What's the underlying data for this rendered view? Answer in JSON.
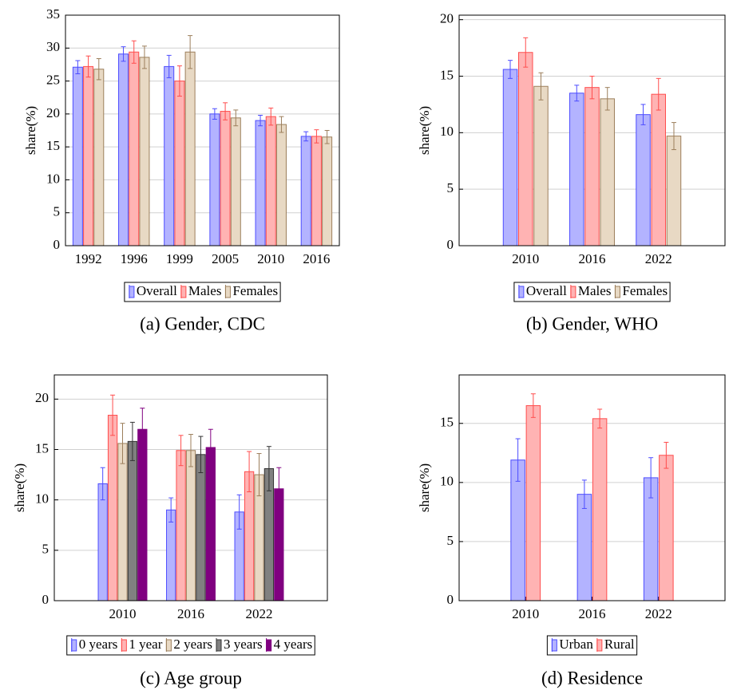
{
  "chart_data": [
    {
      "type": "bar",
      "caption": "(a) Gender, CDC",
      "ylabel": "share(%)",
      "categories": [
        "1992",
        "1996",
        "1999",
        "2005",
        "2010",
        "2016"
      ],
      "ylim": [
        0,
        35
      ],
      "yticks": [
        0,
        5,
        10,
        15,
        20,
        25,
        30,
        35
      ],
      "grid": true,
      "series": [
        {
          "name": "Overall",
          "color": "#b3b3ff",
          "edgecolor": "#4d4dff",
          "values": [
            27.1,
            29.1,
            27.2,
            20.0,
            19.0,
            16.6
          ],
          "errors": [
            1.0,
            1.1,
            1.7,
            0.8,
            0.8,
            0.7
          ]
        },
        {
          "name": "Males",
          "color": "#ffb3b3",
          "edgecolor": "#ff4d4d",
          "values": [
            27.2,
            29.4,
            25.0,
            20.4,
            19.6,
            16.6
          ],
          "errors": [
            1.6,
            1.7,
            2.3,
            1.3,
            1.3,
            1.0
          ]
        },
        {
          "name": "Females",
          "color": "#e8d9c4",
          "edgecolor": "#9c7f5c",
          "values": [
            26.8,
            28.6,
            29.4,
            19.4,
            18.4,
            16.5
          ],
          "errors": [
            1.6,
            1.7,
            2.5,
            1.2,
            1.2,
            1.0
          ]
        }
      ]
    },
    {
      "type": "bar",
      "caption": "(b) Gender, WHO",
      "ylabel": "share(%)",
      "categories": [
        "2010",
        "2016",
        "2022"
      ],
      "ylim": [
        0,
        20.4
      ],
      "yticks": [
        0,
        5,
        10,
        15,
        20
      ],
      "grid": true,
      "series": [
        {
          "name": "Overall",
          "color": "#b3b3ff",
          "edgecolor": "#4d4dff",
          "values": [
            15.6,
            13.5,
            11.6
          ],
          "errors": [
            0.8,
            0.7,
            0.9
          ]
        },
        {
          "name": "Males",
          "color": "#ffb3b3",
          "edgecolor": "#ff4d4d",
          "values": [
            17.1,
            14.0,
            13.4
          ],
          "errors": [
            1.3,
            1.0,
            1.4
          ]
        },
        {
          "name": "Females",
          "color": "#e8d9c4",
          "edgecolor": "#9c7f5c",
          "values": [
            14.1,
            13.0,
            9.7
          ],
          "errors": [
            1.2,
            1.0,
            1.2
          ]
        }
      ]
    },
    {
      "type": "bar",
      "caption": "(c) Age group",
      "ylabel": "share(%)",
      "categories": [
        "2010",
        "2016",
        "2022"
      ],
      "ylim": [
        0,
        22.4
      ],
      "yticks": [
        0,
        5,
        10,
        15,
        20
      ],
      "grid": true,
      "series": [
        {
          "name": "0 years",
          "color": "#b3b3ff",
          "edgecolor": "#4d4dff",
          "values": [
            11.6,
            9.0,
            8.8
          ],
          "errors": [
            1.6,
            1.2,
            1.7
          ]
        },
        {
          "name": "1 year",
          "color": "#ffb3b3",
          "edgecolor": "#ff4d4d",
          "values": [
            18.4,
            14.9,
            12.8
          ],
          "errors": [
            2.0,
            1.5,
            2.0
          ]
        },
        {
          "name": "2 years",
          "color": "#e8d9c4",
          "edgecolor": "#9c7f5c",
          "values": [
            15.6,
            14.9,
            12.5
          ],
          "errors": [
            2.0,
            1.6,
            2.1
          ]
        },
        {
          "name": "3 years",
          "color": "#808080",
          "edgecolor": "#333333",
          "values": [
            15.8,
            14.5,
            13.1
          ],
          "errors": [
            1.9,
            1.8,
            2.2
          ]
        },
        {
          "name": "4 years",
          "color": "#800080",
          "edgecolor": "#800080",
          "values": [
            17.0,
            15.2,
            11.1
          ],
          "errors": [
            2.1,
            1.8,
            2.1
          ]
        }
      ]
    },
    {
      "type": "bar",
      "caption": "(d) Residence",
      "ylabel": "share(%)",
      "categories": [
        "2010",
        "2016",
        "2022"
      ],
      "ylim": [
        0,
        19.1
      ],
      "yticks": [
        0,
        5,
        10,
        15
      ],
      "grid": true,
      "series": [
        {
          "name": "Urban",
          "color": "#b3b3ff",
          "edgecolor": "#4d4dff",
          "values": [
            11.9,
            9.0,
            10.4
          ],
          "errors": [
            1.8,
            1.2,
            1.7
          ]
        },
        {
          "name": "Rural",
          "color": "#ffb3b3",
          "edgecolor": "#ff4d4d",
          "values": [
            16.5,
            15.4,
            12.3
          ],
          "errors": [
            1.0,
            0.8,
            1.1
          ]
        }
      ]
    }
  ]
}
